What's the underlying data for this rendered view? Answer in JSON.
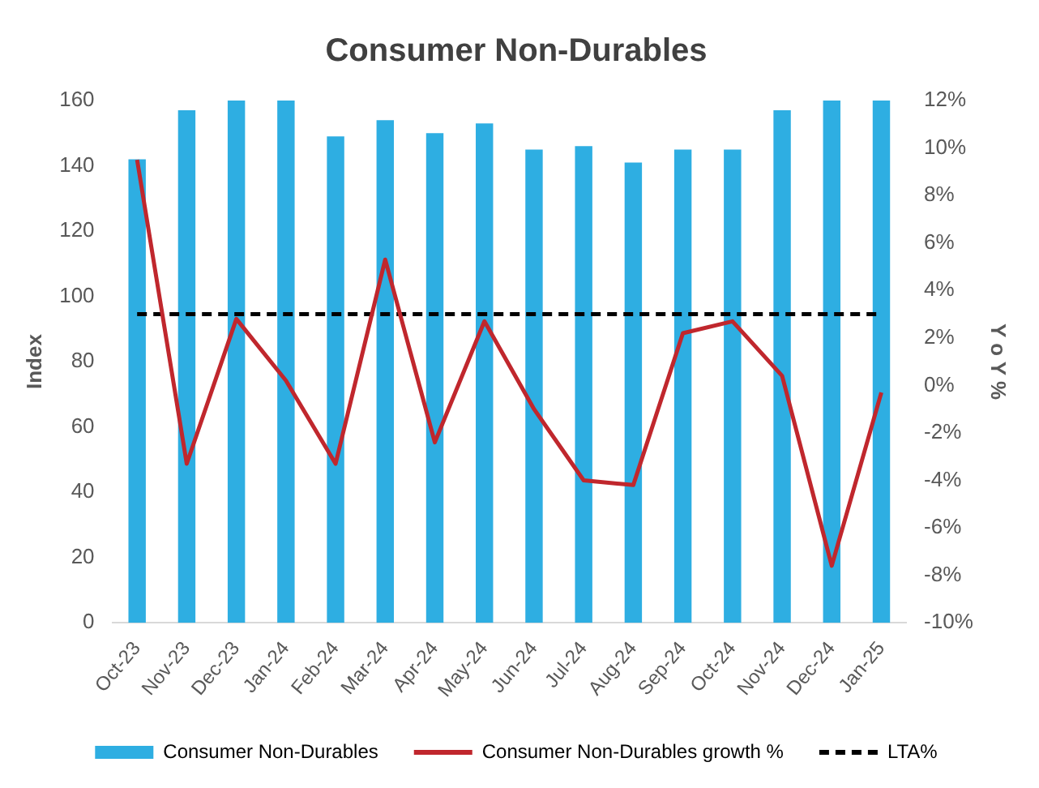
{
  "chart_data": {
    "type": "bar",
    "title": "Consumer Non-Durables",
    "ylabel": "Index",
    "y2label": "Y o Y %",
    "categories": [
      "Oct-23",
      "Nov-23",
      "Dec-23",
      "Jan-24",
      "Feb-24",
      "Mar-24",
      "Apr-24",
      "May-24",
      "Jun-24",
      "Jul-24",
      "Aug-24",
      "Sep-24",
      "Oct-24",
      "Nov-24",
      "Dec-24",
      "Jan-25"
    ],
    "series": [
      {
        "name": "Consumer Non-Durables",
        "color": "#2eaee2",
        "values": [
          142,
          157,
          160,
          160,
          149,
          154,
          150,
          153,
          145,
          146,
          141,
          145,
          145,
          157,
          160,
          160
        ]
      },
      {
        "name": "Consumer Non-Durables growth %",
        "type": "line",
        "axis": "y2",
        "color": "#c0272d",
        "marker": "none",
        "line_style": "solid",
        "values": [
          9.5,
          -3.3,
          2.8,
          0.2,
          -3.3,
          5.3,
          -2.4,
          2.7,
          -1.0,
          -4.0,
          -4.2,
          2.2,
          2.7,
          0.4,
          -7.6,
          -0.3
        ]
      },
      {
        "name": "LTA%",
        "type": "line",
        "axis": "y2",
        "color": "#000000",
        "marker": "none",
        "line_style": "dashed",
        "values": [
          3,
          3,
          3,
          3,
          3,
          3,
          3,
          3,
          3,
          3,
          3,
          3,
          3,
          3,
          3,
          3
        ]
      }
    ],
    "ylim": [
      0,
      160
    ],
    "yticks": [
      0,
      20,
      40,
      60,
      80,
      100,
      120,
      140,
      160
    ],
    "y2lim": [
      -10,
      12
    ],
    "y2ticks": [
      {
        "value": -10,
        "label": "-10%"
      },
      {
        "value": -8,
        "label": "-8%"
      },
      {
        "value": -6,
        "label": "-6%"
      },
      {
        "value": -4,
        "label": "-4%"
      },
      {
        "value": -2,
        "label": "-2%"
      },
      {
        "value": 0,
        "label": "0%"
      },
      {
        "value": 2,
        "label": "2%"
      },
      {
        "value": 4,
        "label": "4%"
      },
      {
        "value": 6,
        "label": "6%"
      },
      {
        "value": 8,
        "label": "8%"
      },
      {
        "value": 10,
        "label": "10%"
      },
      {
        "value": 12,
        "label": "12%"
      }
    ],
    "grid": false,
    "legend": "bottom"
  }
}
